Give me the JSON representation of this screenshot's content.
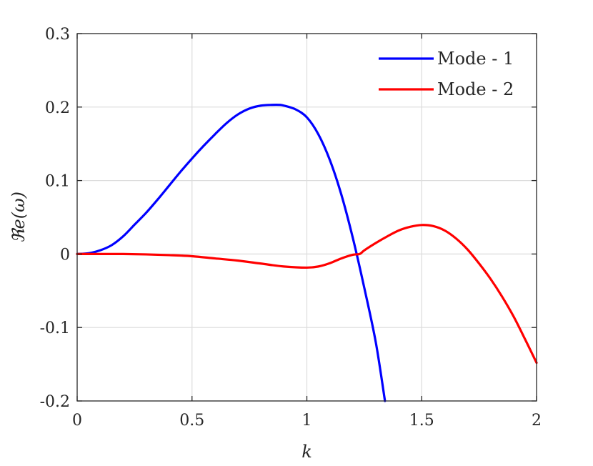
{
  "chart_data": {
    "type": "line",
    "title": "",
    "xlabel": "k",
    "ylabel": "ℜe(ω)",
    "xlim": [
      0,
      2
    ],
    "ylim": [
      -0.2,
      0.3
    ],
    "xticks": [
      0,
      0.5,
      1,
      1.5,
      2
    ],
    "xtick_labels": [
      "0",
      "0.5",
      "1",
      "1.5",
      "2"
    ],
    "yticks": [
      -0.2,
      -0.1,
      0,
      0.1,
      0.2,
      0.3
    ],
    "ytick_labels": [
      "-0.2",
      "-0.1",
      "0",
      "0.1",
      "0.2",
      "0.3"
    ],
    "grid": true,
    "legend_position": "top-right",
    "series": [
      {
        "name": "Mode - 1",
        "color": "#0000ff",
        "x": [
          0,
          0.05,
          0.1,
          0.15,
          0.2,
          0.25,
          0.3,
          0.35,
          0.4,
          0.45,
          0.5,
          0.55,
          0.6,
          0.65,
          0.7,
          0.75,
          0.8,
          0.85,
          0.88,
          0.9,
          0.95,
          1.0,
          1.05,
          1.1,
          1.15,
          1.2,
          1.25,
          1.3,
          1.34
        ],
        "y": [
          0,
          0.001,
          0.005,
          0.012,
          0.024,
          0.04,
          0.056,
          0.074,
          0.093,
          0.112,
          0.13,
          0.147,
          0.163,
          0.178,
          0.19,
          0.198,
          0.202,
          0.203,
          0.203,
          0.202,
          0.197,
          0.186,
          0.163,
          0.128,
          0.081,
          0.022,
          -0.046,
          -0.12,
          -0.2
        ]
      },
      {
        "name": "Mode - 2",
        "color": "#ff0000",
        "x": [
          0,
          0.1,
          0.2,
          0.3,
          0.4,
          0.5,
          0.6,
          0.7,
          0.8,
          0.9,
          1.0,
          1.05,
          1.1,
          1.15,
          1.2,
          1.23,
          1.25,
          1.3,
          1.35,
          1.4,
          1.45,
          1.5,
          1.55,
          1.6,
          1.65,
          1.7,
          1.75,
          1.8,
          1.85,
          1.9,
          1.95,
          2.0
        ],
        "y": [
          0,
          0,
          0,
          -0.0005,
          -0.0015,
          -0.003,
          -0.006,
          -0.009,
          -0.013,
          -0.017,
          -0.0185,
          -0.017,
          -0.0125,
          -0.006,
          -0.001,
          0,
          0.005,
          0.015,
          0.024,
          0.032,
          0.037,
          0.0395,
          0.038,
          0.032,
          0.021,
          0.006,
          -0.013,
          -0.034,
          -0.058,
          -0.085,
          -0.116,
          -0.148
        ]
      }
    ]
  }
}
